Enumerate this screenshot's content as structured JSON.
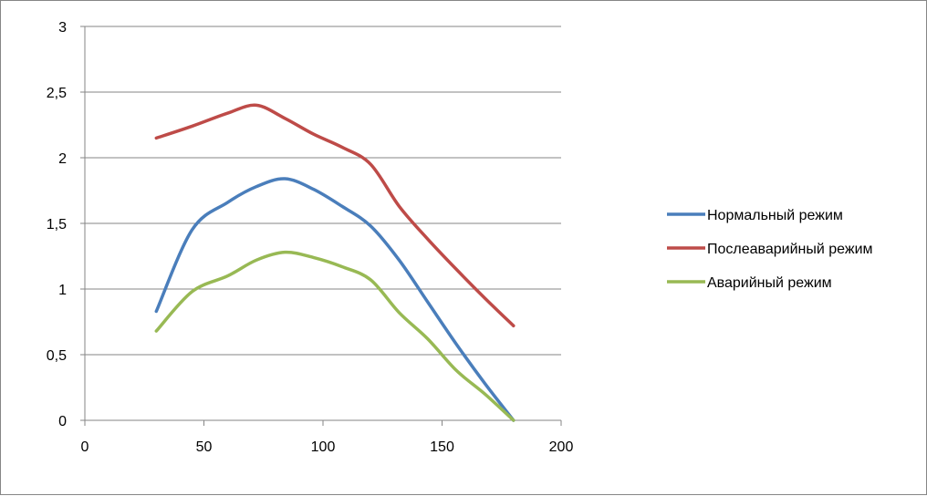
{
  "chart_data": {
    "type": "line",
    "smooth": true,
    "title": "",
    "xlabel": "",
    "ylabel": "",
    "xlim": [
      0,
      200
    ],
    "ylim": [
      0,
      3
    ],
    "x_ticks": [
      "0",
      "50",
      "100",
      "150",
      "200"
    ],
    "y_ticks": [
      "0",
      "0,5",
      "1",
      "1,5",
      "2",
      "2,5",
      "3"
    ],
    "grid": "horizontal",
    "legend_position": "right",
    "series": [
      {
        "name": "Нормальный режим",
        "color": "#4a7ebb",
        "x": [
          30,
          45,
          60,
          72,
          84,
          96,
          108,
          120,
          132,
          144,
          156,
          168,
          180
        ],
        "y": [
          0.83,
          1.45,
          1.66,
          1.78,
          1.84,
          1.76,
          1.63,
          1.48,
          1.22,
          0.9,
          0.58,
          0.28,
          0
        ]
      },
      {
        "name": "Послеаварийный режим",
        "color": "#be4b48",
        "x": [
          30,
          45,
          60,
          72,
          84,
          96,
          108,
          120,
          132,
          144,
          156,
          168,
          180
        ],
        "y": [
          2.15,
          2.24,
          2.34,
          2.4,
          2.3,
          2.18,
          2.08,
          1.95,
          1.63,
          1.38,
          1.15,
          0.93,
          0.72
        ]
      },
      {
        "name": "Аварийный режим",
        "color": "#98b954",
        "x": [
          30,
          45,
          60,
          72,
          84,
          96,
          108,
          120,
          132,
          144,
          156,
          168,
          180
        ],
        "y": [
          0.68,
          0.98,
          1.1,
          1.22,
          1.28,
          1.24,
          1.17,
          1.07,
          0.82,
          0.62,
          0.38,
          0.2,
          0
        ]
      }
    ]
  }
}
